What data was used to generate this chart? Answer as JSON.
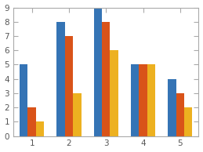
{
  "categories": [
    1,
    2,
    3,
    4,
    5
  ],
  "series": [
    [
      5,
      8,
      9,
      5,
      4
    ],
    [
      2,
      7,
      8,
      5,
      3
    ],
    [
      1,
      3,
      6,
      5,
      2
    ]
  ],
  "colors": [
    "#3574b5",
    "#d95319",
    "#edb120"
  ],
  "ylim": [
    0,
    9
  ],
  "yticks": [
    0,
    1,
    2,
    3,
    4,
    5,
    6,
    7,
    8,
    9
  ],
  "xticks": [
    1,
    2,
    3,
    4,
    5
  ],
  "bg_color": "#ffffff",
  "box_color": "#aaaaaa",
  "tick_color": "#555555",
  "figsize": [
    2.59,
    1.94
  ],
  "dpi": 100,
  "bar_width": 0.22
}
